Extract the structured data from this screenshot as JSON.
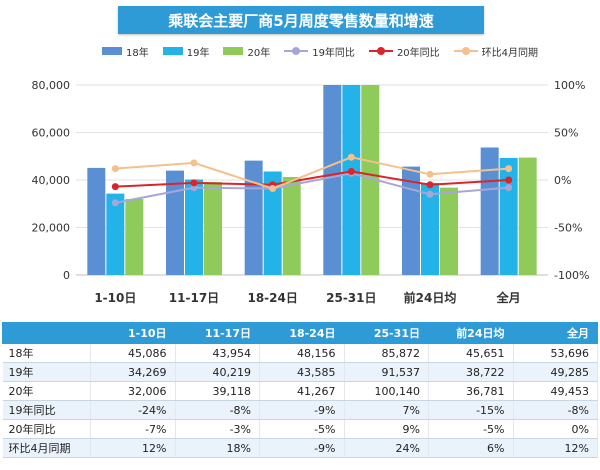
{
  "chart_data": {
    "title": "乘联会主要厂商5月周度零售数量和增速",
    "type": "bar+line",
    "categories": [
      "1-10日",
      "11-17日",
      "18-24日",
      "25-31日",
      "前24日均",
      "全月"
    ],
    "left_axis": {
      "min": 0,
      "max": 80000,
      "ticks": [
        "0",
        "20,000",
        "40,000",
        "60,000",
        "80,000"
      ]
    },
    "right_axis": {
      "min": -100,
      "max": 100,
      "ticks": [
        "100%",
        "50%",
        "0%",
        "-50%",
        "-100%"
      ]
    },
    "grid": true,
    "legend_position": "top",
    "bar_series": [
      {
        "name": "18年",
        "color": "#5b8fd4",
        "values": [
          45086,
          43954,
          48156,
          85872,
          45651,
          53696
        ]
      },
      {
        "name": "19年",
        "color": "#24b3e9",
        "values": [
          34269,
          40219,
          43585,
          91537,
          38722,
          49285
        ]
      },
      {
        "name": "20年",
        "color": "#8fcb5a",
        "values": [
          32006,
          39118,
          41267,
          100140,
          36781,
          49453
        ]
      }
    ],
    "line_series": [
      {
        "name": "19年同比",
        "color": "#a8a6d8",
        "values": [
          -24,
          -8,
          -9,
          7,
          -15,
          -8
        ]
      },
      {
        "name": "20年同比",
        "color": "#d9252b",
        "values": [
          -7,
          -3,
          -5,
          9,
          -5,
          0
        ]
      },
      {
        "name": "环比4月同期",
        "color": "#f4c08c",
        "values": [
          12,
          18,
          -9,
          24,
          6,
          12
        ]
      }
    ]
  },
  "table": {
    "header": [
      "",
      "1-10日",
      "11-17日",
      "18-24日",
      "25-31日",
      "前24日均",
      "全月"
    ],
    "rows": [
      [
        "18年",
        "45,086",
        "43,954",
        "48,156",
        "85,872",
        "45,651",
        "53,696"
      ],
      [
        "19年",
        "34,269",
        "40,219",
        "43,585",
        "91,537",
        "38,722",
        "49,285"
      ],
      [
        "20年",
        "32,006",
        "39,118",
        "41,267",
        "100,140",
        "36,781",
        "49,453"
      ],
      [
        "19年同比",
        "-24%",
        "-8%",
        "-9%",
        "7%",
        "-15%",
        "-8%"
      ],
      [
        "20年同比",
        "-7%",
        "-3%",
        "-5%",
        "9%",
        "-5%",
        "0%"
      ],
      [
        "环比4月同期",
        "12%",
        "18%",
        "-9%",
        "24%",
        "6%",
        "12%"
      ]
    ]
  }
}
